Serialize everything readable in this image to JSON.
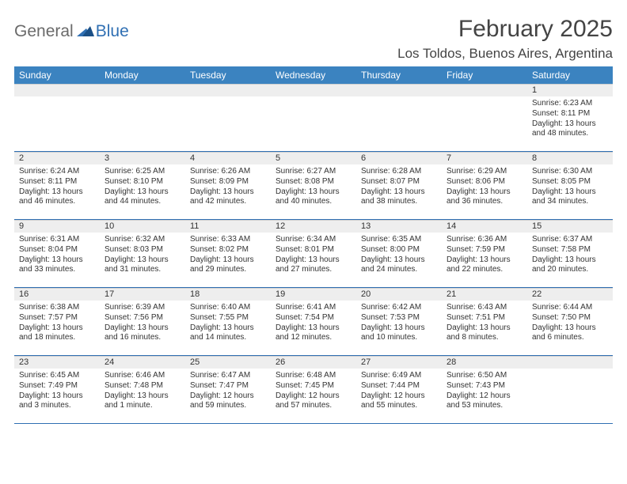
{
  "brand": {
    "text1": "General",
    "text2": "Blue"
  },
  "title": {
    "monthYear": "February 2025",
    "location": "Los Toldos, Buenos Aires, Argentina"
  },
  "colors": {
    "headerBar": "#3b83c0",
    "bandBg": "#eeeeee",
    "rowBorder": "#2f6fb3",
    "text": "#333333"
  },
  "daysOfWeek": [
    "Sunday",
    "Monday",
    "Tuesday",
    "Wednesday",
    "Thursday",
    "Friday",
    "Saturday"
  ],
  "weeks": [
    {
      "nums": [
        "",
        "",
        "",
        "",
        "",
        "",
        "1"
      ],
      "cells": [
        null,
        null,
        null,
        null,
        null,
        null,
        {
          "sunrise": "Sunrise: 6:23 AM",
          "sunset": "Sunset: 8:11 PM",
          "day": "Daylight: 13 hours and 48 minutes."
        }
      ]
    },
    {
      "nums": [
        "2",
        "3",
        "4",
        "5",
        "6",
        "7",
        "8"
      ],
      "cells": [
        {
          "sunrise": "Sunrise: 6:24 AM",
          "sunset": "Sunset: 8:11 PM",
          "day": "Daylight: 13 hours and 46 minutes."
        },
        {
          "sunrise": "Sunrise: 6:25 AM",
          "sunset": "Sunset: 8:10 PM",
          "day": "Daylight: 13 hours and 44 minutes."
        },
        {
          "sunrise": "Sunrise: 6:26 AM",
          "sunset": "Sunset: 8:09 PM",
          "day": "Daylight: 13 hours and 42 minutes."
        },
        {
          "sunrise": "Sunrise: 6:27 AM",
          "sunset": "Sunset: 8:08 PM",
          "day": "Daylight: 13 hours and 40 minutes."
        },
        {
          "sunrise": "Sunrise: 6:28 AM",
          "sunset": "Sunset: 8:07 PM",
          "day": "Daylight: 13 hours and 38 minutes."
        },
        {
          "sunrise": "Sunrise: 6:29 AM",
          "sunset": "Sunset: 8:06 PM",
          "day": "Daylight: 13 hours and 36 minutes."
        },
        {
          "sunrise": "Sunrise: 6:30 AM",
          "sunset": "Sunset: 8:05 PM",
          "day": "Daylight: 13 hours and 34 minutes."
        }
      ]
    },
    {
      "nums": [
        "9",
        "10",
        "11",
        "12",
        "13",
        "14",
        "15"
      ],
      "cells": [
        {
          "sunrise": "Sunrise: 6:31 AM",
          "sunset": "Sunset: 8:04 PM",
          "day": "Daylight: 13 hours and 33 minutes."
        },
        {
          "sunrise": "Sunrise: 6:32 AM",
          "sunset": "Sunset: 8:03 PM",
          "day": "Daylight: 13 hours and 31 minutes."
        },
        {
          "sunrise": "Sunrise: 6:33 AM",
          "sunset": "Sunset: 8:02 PM",
          "day": "Daylight: 13 hours and 29 minutes."
        },
        {
          "sunrise": "Sunrise: 6:34 AM",
          "sunset": "Sunset: 8:01 PM",
          "day": "Daylight: 13 hours and 27 minutes."
        },
        {
          "sunrise": "Sunrise: 6:35 AM",
          "sunset": "Sunset: 8:00 PM",
          "day": "Daylight: 13 hours and 24 minutes."
        },
        {
          "sunrise": "Sunrise: 6:36 AM",
          "sunset": "Sunset: 7:59 PM",
          "day": "Daylight: 13 hours and 22 minutes."
        },
        {
          "sunrise": "Sunrise: 6:37 AM",
          "sunset": "Sunset: 7:58 PM",
          "day": "Daylight: 13 hours and 20 minutes."
        }
      ]
    },
    {
      "nums": [
        "16",
        "17",
        "18",
        "19",
        "20",
        "21",
        "22"
      ],
      "cells": [
        {
          "sunrise": "Sunrise: 6:38 AM",
          "sunset": "Sunset: 7:57 PM",
          "day": "Daylight: 13 hours and 18 minutes."
        },
        {
          "sunrise": "Sunrise: 6:39 AM",
          "sunset": "Sunset: 7:56 PM",
          "day": "Daylight: 13 hours and 16 minutes."
        },
        {
          "sunrise": "Sunrise: 6:40 AM",
          "sunset": "Sunset: 7:55 PM",
          "day": "Daylight: 13 hours and 14 minutes."
        },
        {
          "sunrise": "Sunrise: 6:41 AM",
          "sunset": "Sunset: 7:54 PM",
          "day": "Daylight: 13 hours and 12 minutes."
        },
        {
          "sunrise": "Sunrise: 6:42 AM",
          "sunset": "Sunset: 7:53 PM",
          "day": "Daylight: 13 hours and 10 minutes."
        },
        {
          "sunrise": "Sunrise: 6:43 AM",
          "sunset": "Sunset: 7:51 PM",
          "day": "Daylight: 13 hours and 8 minutes."
        },
        {
          "sunrise": "Sunrise: 6:44 AM",
          "sunset": "Sunset: 7:50 PM",
          "day": "Daylight: 13 hours and 6 minutes."
        }
      ]
    },
    {
      "nums": [
        "23",
        "24",
        "25",
        "26",
        "27",
        "28",
        ""
      ],
      "cells": [
        {
          "sunrise": "Sunrise: 6:45 AM",
          "sunset": "Sunset: 7:49 PM",
          "day": "Daylight: 13 hours and 3 minutes."
        },
        {
          "sunrise": "Sunrise: 6:46 AM",
          "sunset": "Sunset: 7:48 PM",
          "day": "Daylight: 13 hours and 1 minute."
        },
        {
          "sunrise": "Sunrise: 6:47 AM",
          "sunset": "Sunset: 7:47 PM",
          "day": "Daylight: 12 hours and 59 minutes."
        },
        {
          "sunrise": "Sunrise: 6:48 AM",
          "sunset": "Sunset: 7:45 PM",
          "day": "Daylight: 12 hours and 57 minutes."
        },
        {
          "sunrise": "Sunrise: 6:49 AM",
          "sunset": "Sunset: 7:44 PM",
          "day": "Daylight: 12 hours and 55 minutes."
        },
        {
          "sunrise": "Sunrise: 6:50 AM",
          "sunset": "Sunset: 7:43 PM",
          "day": "Daylight: 12 hours and 53 minutes."
        },
        null
      ]
    }
  ]
}
